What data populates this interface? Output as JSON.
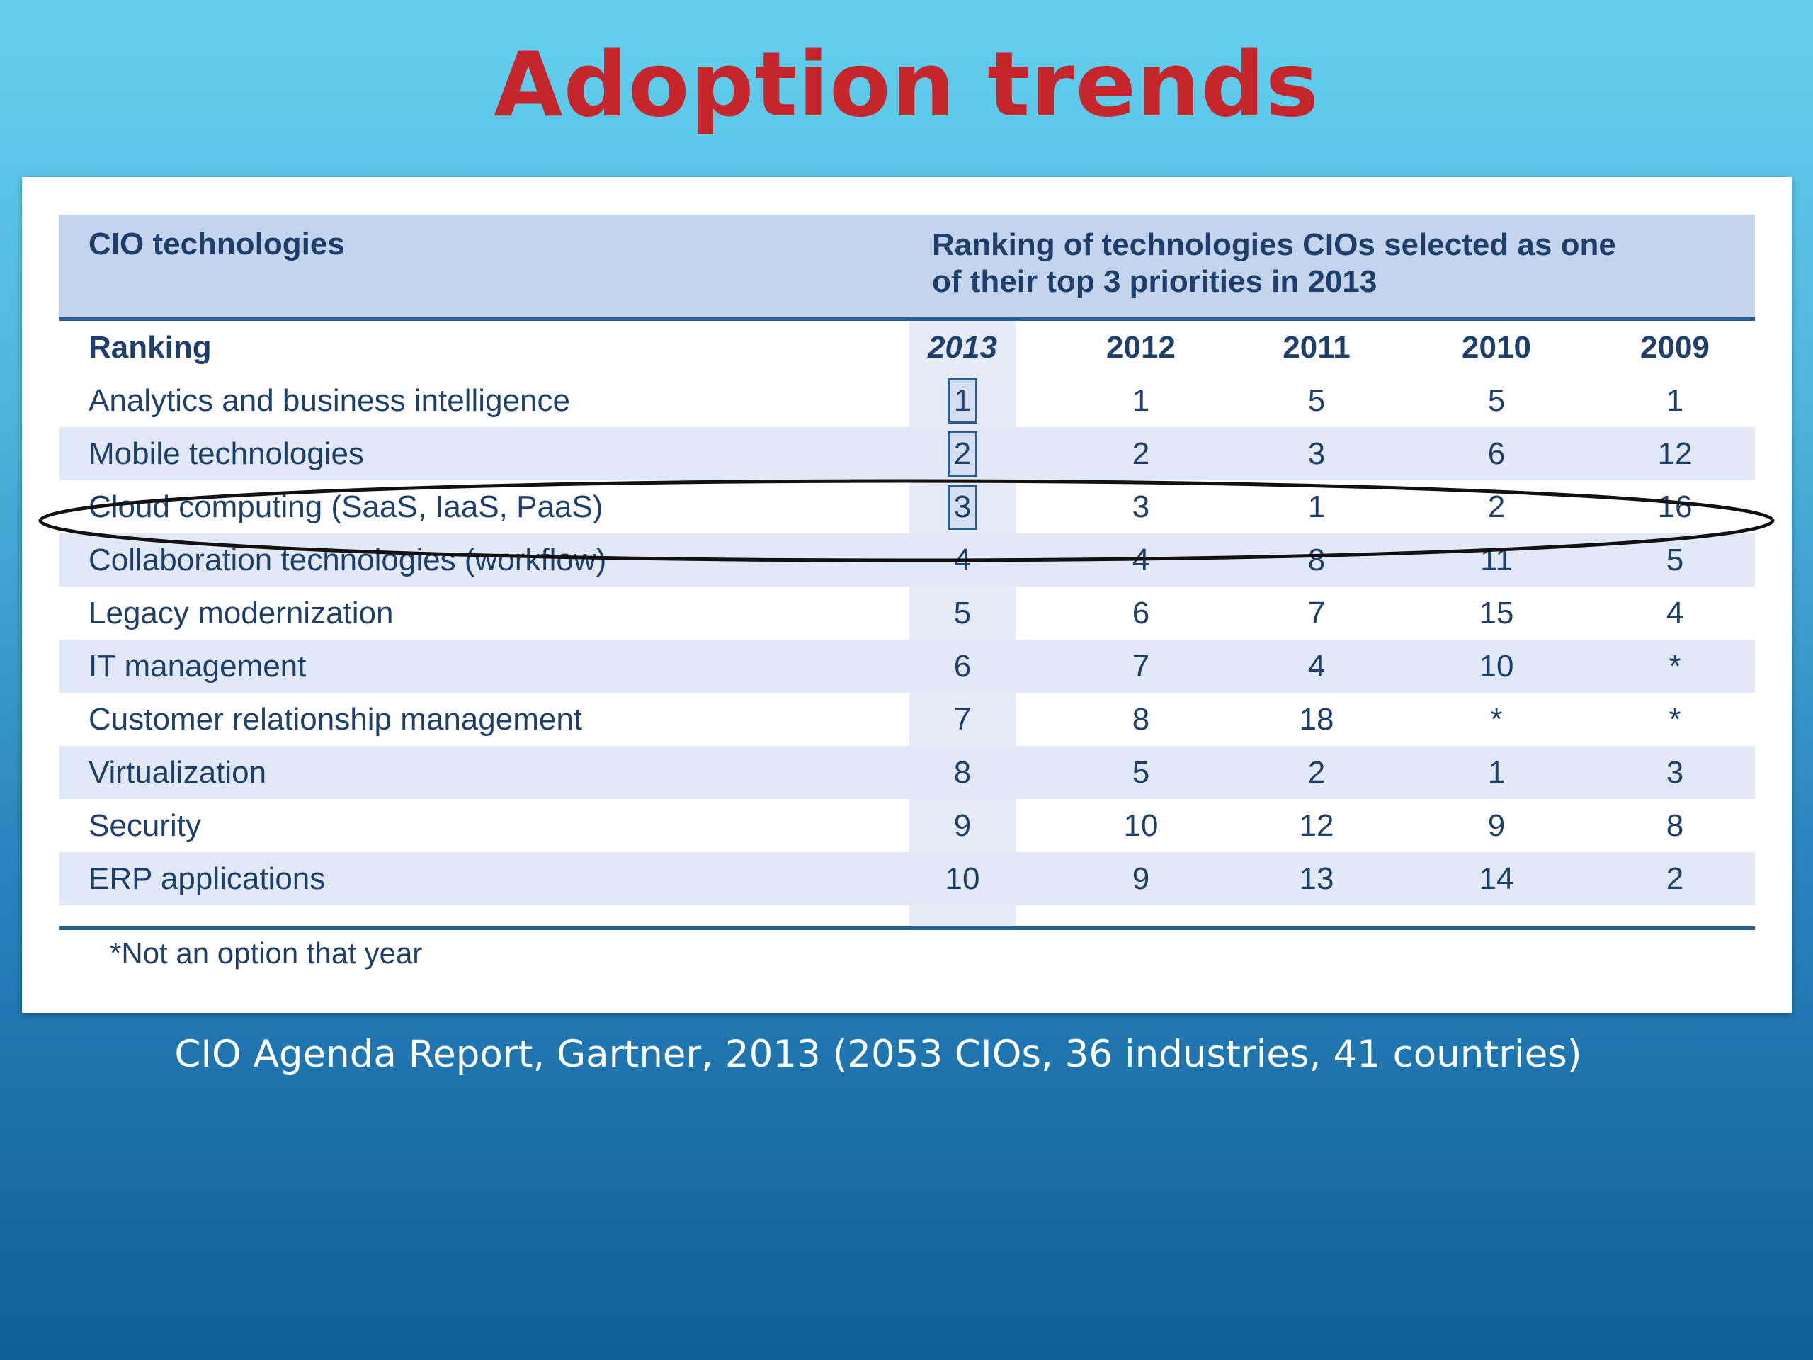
{
  "slide": {
    "title": "Adoption trends",
    "source": "CIO Agenda Report, Gartner, 2013 (2053 CIOs, 36 industries, 41 countries)"
  },
  "table": {
    "header_left": "CIO technologies",
    "header_right_line1": "Ranking of technologies CIOs selected as one",
    "header_right_line2": "of their top 3 priorities in 2013",
    "ranking_label": "Ranking",
    "years": [
      "2013",
      "2012",
      "2011",
      "2010",
      "2009"
    ],
    "rows": [
      {
        "name": "Analytics and business intelligence",
        "values": [
          "1",
          "1",
          "5",
          "5",
          "1"
        ]
      },
      {
        "name": "Mobile technologies",
        "values": [
          "2",
          "2",
          "3",
          "6",
          "12"
        ]
      },
      {
        "name": "Cloud computing (SaaS, IaaS, PaaS)",
        "values": [
          "3",
          "3",
          "1",
          "2",
          "16"
        ]
      },
      {
        "name": "Collaboration technologies (workflow)",
        "values": [
          "4",
          "4",
          "8",
          "11",
          "5"
        ]
      },
      {
        "name": "Legacy modernization",
        "values": [
          "5",
          "6",
          "7",
          "15",
          "4"
        ]
      },
      {
        "name": "IT management",
        "values": [
          "6",
          "7",
          "4",
          "10",
          "*"
        ]
      },
      {
        "name": "Customer relationship management",
        "values": [
          "7",
          "8",
          "18",
          "*",
          "*"
        ]
      },
      {
        "name": "Virtualization",
        "values": [
          "8",
          "5",
          "2",
          "1",
          "3"
        ]
      },
      {
        "name": "Security",
        "values": [
          "9",
          "10",
          "12",
          "9",
          "8"
        ]
      },
      {
        "name": "ERP applications",
        "values": [
          "10",
          "9",
          "13",
          "14",
          "2"
        ]
      }
    ],
    "footnote": "*Not an option that year"
  },
  "highlight": {
    "row": "Cloud computing (SaaS, IaaS, PaaS)",
    "boxed_top_ranks": 3
  }
}
